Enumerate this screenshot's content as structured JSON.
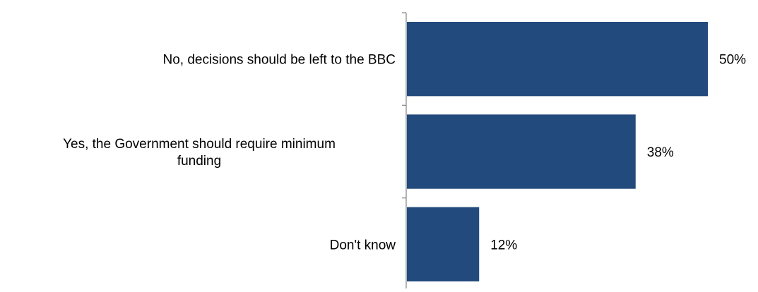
{
  "chart_data": {
    "type": "bar",
    "orientation": "horizontal",
    "categories": [
      "No, decisions should be left to the BBC",
      "Yes, the Government should require minimum funding",
      "Don't know"
    ],
    "category_lines": [
      [
        "No, decisions should be left to the BBC"
      ],
      [
        "Yes, the Government should require minimum",
        "funding"
      ],
      [
        "Don't know"
      ]
    ],
    "values": [
      50,
      38,
      12
    ],
    "value_labels": [
      "50%",
      "38%",
      "12%"
    ],
    "unit": "%",
    "xlim": [
      0,
      50
    ],
    "title": "",
    "xlabel": "",
    "ylabel": "",
    "grid": false,
    "legend": "none",
    "colors": {
      "bar": "#234A7C",
      "axis": "#8C8C8C",
      "text": "#000000"
    }
  }
}
